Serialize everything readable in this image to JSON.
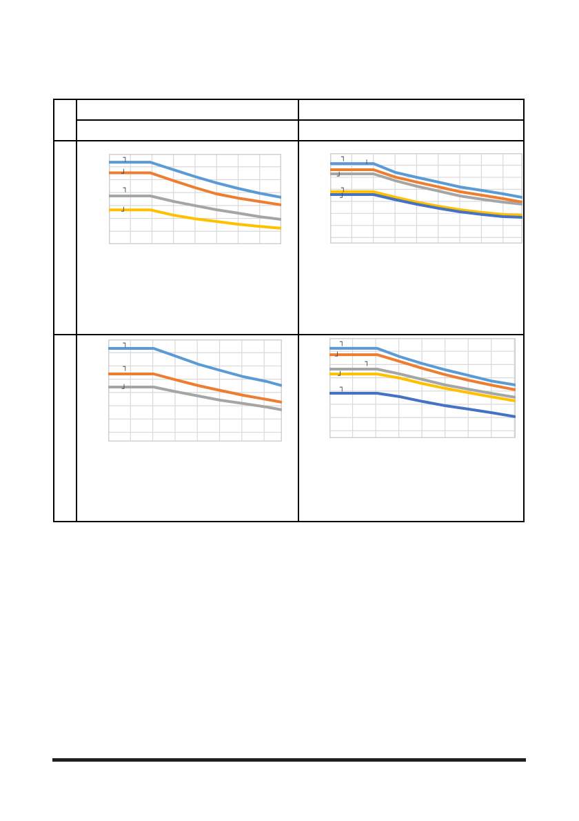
{
  "page": {
    "background": "#ffffff"
  },
  "footer_rule": {
    "color": "#1f1f1f"
  },
  "table": {
    "corner_cell": "",
    "header": {
      "left_row1": "",
      "left_row2": "",
      "right_row1": "",
      "right_row2": ""
    },
    "rows": [
      {
        "label": "",
        "left_cell_text": "",
        "right_cell_text": ""
      },
      {
        "label": "",
        "left_cell_text": "",
        "right_cell_text": ""
      }
    ]
  },
  "palette": {
    "blue": "#5B9BD5",
    "orange": "#ED7D31",
    "gray": "#A5A5A5",
    "yellow": "#FFC000",
    "dark_blue": "#4472C4",
    "grid": "#d9d9d9",
    "plot_border": "#d0d0d0"
  },
  "chart_data": [
    {
      "id": "top-left",
      "type": "line",
      "title": "",
      "xlabel": "",
      "ylabel": "",
      "tick_labels": "none visible",
      "legend": "none",
      "grid": {
        "cols": 8.0,
        "rows": 7.0,
        "color": "#d9d9d9",
        "on": true
      },
      "coords": "fraction of plot area, y measured from top",
      "series": [
        {
          "name": "blue",
          "color": "#5B9BD5",
          "points": [
            [
              0,
              0.092
            ],
            [
              0.24,
              0.092
            ],
            [
              0.376,
              0.176
            ],
            [
              0.5,
              0.252
            ],
            [
              0.624,
              0.321
            ],
            [
              0.748,
              0.382
            ],
            [
              0.872,
              0.435
            ],
            [
              1,
              0.481
            ]
          ]
        },
        {
          "name": "orange",
          "color": "#ED7D31",
          "points": [
            [
              0,
              0.21
            ],
            [
              0.24,
              0.21
            ],
            [
              0.376,
              0.298
            ],
            [
              0.5,
              0.374
            ],
            [
              0.624,
              0.443
            ],
            [
              0.748,
              0.489
            ],
            [
              0.872,
              0.527
            ],
            [
              1,
              0.565
            ]
          ]
        },
        {
          "name": "gray",
          "color": "#A5A5A5",
          "points": [
            [
              0,
              0.466
            ],
            [
              0.24,
              0.466
            ],
            [
              0.376,
              0.527
            ],
            [
              0.5,
              0.573
            ],
            [
              0.624,
              0.618
            ],
            [
              0.748,
              0.656
            ],
            [
              0.872,
              0.695
            ],
            [
              1,
              0.725
            ]
          ]
        },
        {
          "name": "yellow",
          "color": "#FFC000",
          "points": [
            [
              0,
              0.62
            ],
            [
              0.24,
              0.62
            ],
            [
              0.376,
              0.679
            ],
            [
              0.5,
              0.718
            ],
            [
              0.624,
              0.748
            ],
            [
              0.748,
              0.779
            ],
            [
              0.872,
              0.802
            ],
            [
              1,
              0.824
            ]
          ]
        }
      ],
      "annotations": [
        {
          "glyph": "┐",
          "x": 0.082,
          "y": 0.005
        },
        {
          "glyph": "┘",
          "x": 0.072,
          "y": 0.185
        },
        {
          "glyph": "┐",
          "x": 0.082,
          "y": 0.34
        },
        {
          "glyph": "┘",
          "x": 0.072,
          "y": 0.6
        }
      ]
    },
    {
      "id": "top-right",
      "type": "line",
      "title": "",
      "xlabel": "",
      "ylabel": "",
      "tick_labels": "none visible",
      "legend": "none",
      "grid": {
        "cols": 8.9,
        "rows": 7.5,
        "color": "#d9d9d9",
        "on": true
      },
      "coords": "fraction of plot area, y measured from top",
      "series": [
        {
          "name": "blue",
          "color": "#5B9BD5",
          "points": [
            [
              0,
              0.115
            ],
            [
              0.225,
              0.115
            ],
            [
              0.34,
              0.214
            ],
            [
              0.45,
              0.267
            ],
            [
              0.565,
              0.321
            ],
            [
              0.675,
              0.374
            ],
            [
              0.79,
              0.412
            ],
            [
              0.9,
              0.45
            ],
            [
              1,
              0.489
            ]
          ]
        },
        {
          "name": "orange",
          "color": "#ED7D31",
          "points": [
            [
              0,
              0.183
            ],
            [
              0.225,
              0.183
            ],
            [
              0.34,
              0.266
            ],
            [
              0.45,
              0.32
            ],
            [
              0.565,
              0.374
            ],
            [
              0.675,
              0.427
            ],
            [
              0.79,
              0.466
            ],
            [
              0.9,
              0.504
            ],
            [
              1,
              0.542
            ]
          ]
        },
        {
          "name": "gray",
          "color": "#A5A5A5",
          "points": [
            [
              0,
              0.229
            ],
            [
              0.225,
              0.229
            ],
            [
              0.34,
              0.305
            ],
            [
              0.45,
              0.366
            ],
            [
              0.565,
              0.42
            ],
            [
              0.675,
              0.473
            ],
            [
              0.79,
              0.511
            ],
            [
              0.9,
              0.542
            ],
            [
              1,
              0.565
            ]
          ]
        },
        {
          "name": "yellow",
          "color": "#FFC000",
          "points": [
            [
              0,
              0.427
            ],
            [
              0.225,
              0.427
            ],
            [
              0.34,
              0.488
            ],
            [
              0.45,
              0.542
            ],
            [
              0.565,
              0.588
            ],
            [
              0.675,
              0.626
            ],
            [
              0.79,
              0.656
            ],
            [
              0.9,
              0.679
            ],
            [
              1,
              0.687
            ]
          ]
        },
        {
          "name": "dark-blue",
          "color": "#4472C4",
          "points": [
            [
              0,
              0.458
            ],
            [
              0.225,
              0.458
            ],
            [
              0.34,
              0.515
            ],
            [
              0.45,
              0.565
            ],
            [
              0.565,
              0.611
            ],
            [
              0.675,
              0.649
            ],
            [
              0.79,
              0.679
            ],
            [
              0.9,
              0.702
            ],
            [
              1,
              0.71
            ]
          ]
        }
      ],
      "annotations": [
        {
          "glyph": "┐",
          "x": 0.057,
          "y": 0.005
        },
        {
          "glyph": "╷",
          "x": 0.178,
          "y": 0.04
        },
        {
          "glyph": "┘",
          "x": 0.035,
          "y": 0.225
        },
        {
          "glyph": "┐",
          "x": 0.057,
          "y": 0.35
        },
        {
          "glyph": "┘",
          "x": 0.05,
          "y": 0.46
        }
      ]
    },
    {
      "id": "bottom-left",
      "type": "line",
      "title": "",
      "xlabel": "",
      "ylabel": "",
      "tick_labels": "none visible",
      "legend": "none",
      "grid": {
        "cols": 7.8,
        "rows": 7.7,
        "color": "#d9d9d9",
        "on": true
      },
      "coords": "fraction of plot area, y measured from top",
      "series": [
        {
          "name": "blue",
          "color": "#5B9BD5",
          "points": [
            [
              0,
              0.088
            ],
            [
              0.262,
              0.088
            ],
            [
              0.397,
              0.169
            ],
            [
              0.52,
              0.243
            ],
            [
              0.647,
              0.304
            ],
            [
              0.778,
              0.365
            ],
            [
              0.913,
              0.412
            ],
            [
              1,
              0.453
            ]
          ]
        },
        {
          "name": "orange",
          "color": "#ED7D31",
          "points": [
            [
              0,
              0.338
            ],
            [
              0.262,
              0.338
            ],
            [
              0.397,
              0.399
            ],
            [
              0.52,
              0.453
            ],
            [
              0.647,
              0.5
            ],
            [
              0.778,
              0.547
            ],
            [
              0.913,
              0.588
            ],
            [
              1,
              0.615
            ]
          ]
        },
        {
          "name": "gray",
          "color": "#A5A5A5",
          "points": [
            [
              0,
              0.466
            ],
            [
              0.262,
              0.466
            ],
            [
              0.397,
              0.514
            ],
            [
              0.52,
              0.554
            ],
            [
              0.647,
              0.595
            ],
            [
              0.778,
              0.628
            ],
            [
              0.913,
              0.662
            ],
            [
              1,
              0.689
            ]
          ]
        }
      ],
      "annotations": [
        {
          "glyph": "┐",
          "x": 0.085,
          "y": 0.005
        },
        {
          "glyph": "┐",
          "x": 0.085,
          "y": 0.235
        },
        {
          "glyph": "┘",
          "x": 0.078,
          "y": 0.45
        }
      ]
    },
    {
      "id": "bottom-right",
      "type": "line",
      "title": "",
      "xlabel": "",
      "ylabel": "",
      "tick_labels": "none visible",
      "legend": "none",
      "grid": {
        "cols": 8.05,
        "rows": 7.55,
        "color": "#d9d9d9",
        "on": true
      },
      "coords": "fraction of plot area, y measured from top",
      "series": [
        {
          "name": "blue",
          "color": "#5B9BD5",
          "points": [
            [
              0,
              0.103
            ],
            [
              0.256,
              0.103
            ],
            [
              0.378,
              0.186
            ],
            [
              0.5,
              0.255
            ],
            [
              0.622,
              0.317
            ],
            [
              0.744,
              0.372
            ],
            [
              0.867,
              0.428
            ],
            [
              1,
              0.469
            ]
          ]
        },
        {
          "name": "orange",
          "color": "#ED7D31",
          "points": [
            [
              0,
              0.166
            ],
            [
              0.256,
              0.166
            ],
            [
              0.378,
              0.234
            ],
            [
              0.5,
              0.303
            ],
            [
              0.622,
              0.366
            ],
            [
              0.744,
              0.421
            ],
            [
              0.867,
              0.469
            ],
            [
              1,
              0.517
            ]
          ]
        },
        {
          "name": "gray",
          "color": "#A5A5A5",
          "points": [
            [
              0,
              0.31
            ],
            [
              0.256,
              0.31
            ],
            [
              0.378,
              0.359
            ],
            [
              0.5,
              0.414
            ],
            [
              0.622,
              0.469
            ],
            [
              0.744,
              0.51
            ],
            [
              0.867,
              0.552
            ],
            [
              1,
              0.593
            ]
          ]
        },
        {
          "name": "yellow",
          "color": "#FFC000",
          "points": [
            [
              0,
              0.359
            ],
            [
              0.256,
              0.359
            ],
            [
              0.378,
              0.4
            ],
            [
              0.5,
              0.455
            ],
            [
              0.622,
              0.503
            ],
            [
              0.744,
              0.545
            ],
            [
              0.867,
              0.586
            ],
            [
              1,
              0.628
            ]
          ]
        },
        {
          "name": "dark-blue",
          "color": "#4472C4",
          "points": [
            [
              0,
              0.552
            ],
            [
              0.256,
              0.552
            ],
            [
              0.378,
              0.586
            ],
            [
              0.5,
              0.634
            ],
            [
              0.622,
              0.676
            ],
            [
              0.744,
              0.71
            ],
            [
              0.867,
              0.745
            ],
            [
              1,
              0.786
            ]
          ]
        }
      ],
      "annotations": [
        {
          "glyph": "┐",
          "x": 0.055,
          "y": 0.005
        },
        {
          "glyph": "┘",
          "x": 0.03,
          "y": 0.155
        },
        {
          "glyph": "┐",
          "x": 0.19,
          "y": 0.21
        },
        {
          "glyph": "┘",
          "x": 0.045,
          "y": 0.345
        },
        {
          "glyph": "┐",
          "x": 0.055,
          "y": 0.46
        }
      ]
    }
  ]
}
